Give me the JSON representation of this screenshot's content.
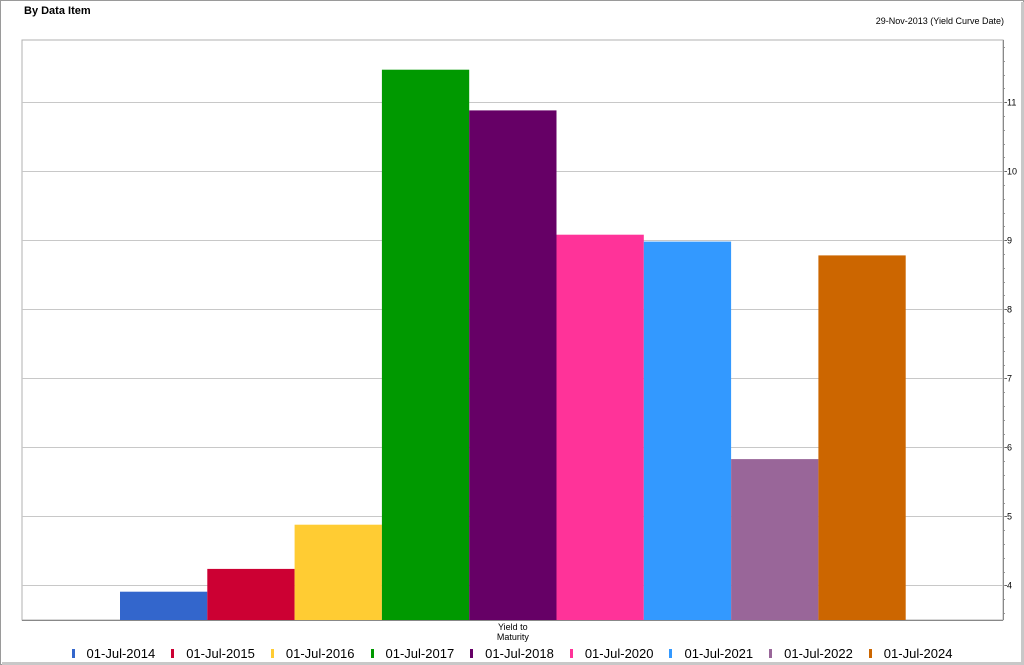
{
  "header": {
    "title": "By Data Item",
    "subtitle": "29-Nov-2013 (Yield Curve Date)"
  },
  "chart_data": {
    "type": "bar",
    "title": "By Data Item",
    "subtitle": "29-Nov-2013 (Yield Curve Date)",
    "categories": [
      "Yield to Maturity"
    ],
    "xlabel": "",
    "ylabel": "",
    "ylim": [
      3.5,
      11.9
    ],
    "yticks": [
      4,
      5,
      6,
      7,
      8,
      9,
      10,
      11
    ],
    "y_axis_side": "right",
    "grid": true,
    "legend_position": "bottom",
    "series": [
      {
        "name": "01-Jul-2014",
        "color": "#3366cc",
        "values": [
          3.91
        ]
      },
      {
        "name": "01-Jul-2015",
        "color": "#cc0033",
        "values": [
          4.24
        ]
      },
      {
        "name": "01-Jul-2016",
        "color": "#ffcc33",
        "values": [
          4.88
        ]
      },
      {
        "name": "01-Jul-2017",
        "color": "#009900",
        "values": [
          11.47
        ]
      },
      {
        "name": "01-Jul-2018",
        "color": "#660066",
        "values": [
          10.88
        ]
      },
      {
        "name": "01-Jul-2020",
        "color": "#ff3399",
        "values": [
          9.08
        ]
      },
      {
        "name": "01-Jul-2021",
        "color": "#3399ff",
        "values": [
          8.98
        ]
      },
      {
        "name": "01-Jul-2022",
        "color": "#996699",
        "values": [
          5.83
        ]
      },
      {
        "name": "01-Jul-2024",
        "color": "#cc6600",
        "values": [
          8.78
        ]
      }
    ]
  }
}
